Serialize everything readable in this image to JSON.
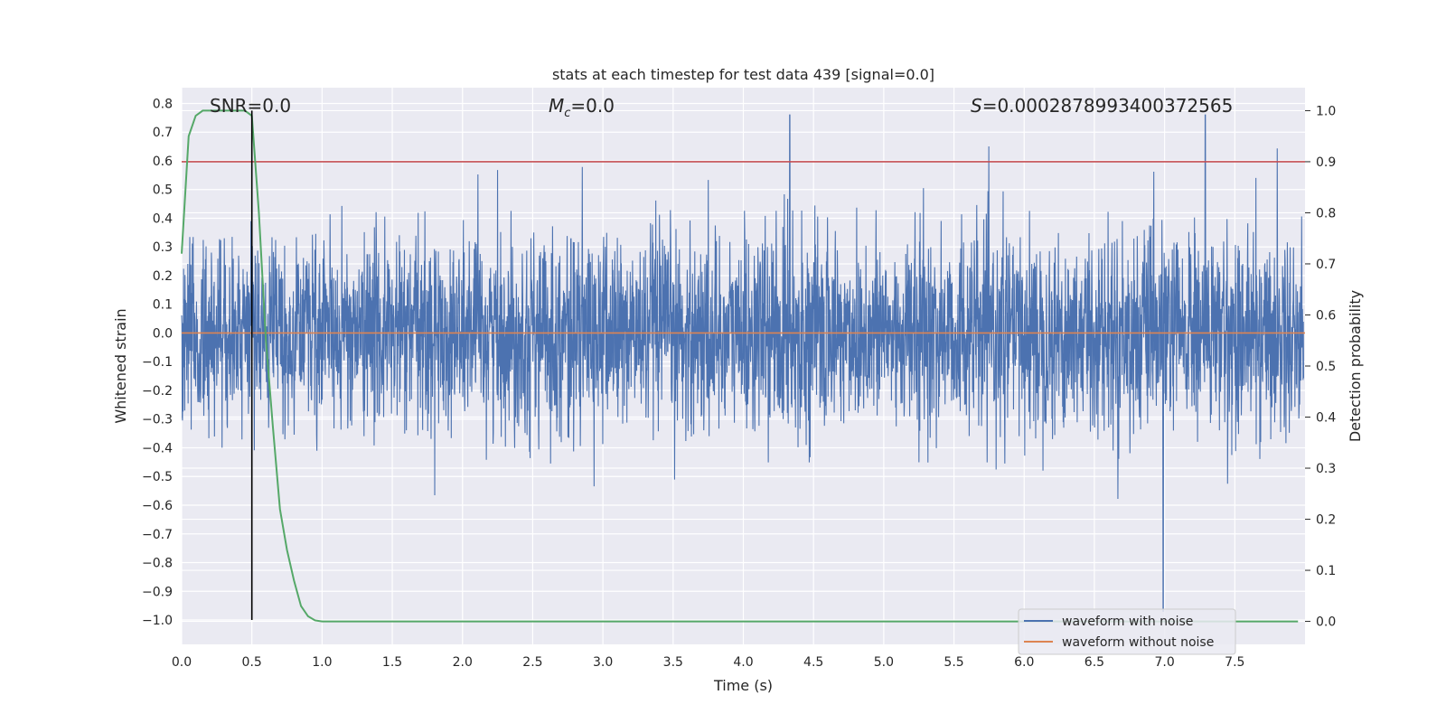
{
  "chart_data": {
    "type": "line",
    "title": "stats at each timestep for test data 439 [signal=0.0]",
    "xlabel": "Time (s)",
    "ylabel": "Whitened strain",
    "y2label": "Detection probability",
    "xlim": [
      0.0,
      8.0
    ],
    "ylim": [
      -1.085,
      0.855
    ],
    "y2lim": [
      -0.045,
      1.045
    ],
    "xticks": [
      "0.0",
      "0.5",
      "1.0",
      "1.5",
      "2.0",
      "2.5",
      "3.0",
      "3.5",
      "4.0",
      "4.5",
      "5.0",
      "5.5",
      "6.0",
      "6.5",
      "7.0",
      "7.5"
    ],
    "yticks": [
      "0.8",
      "0.7",
      "0.6",
      "0.5",
      "0.4",
      "0.3",
      "0.2",
      "0.1",
      "0.0",
      "-0.1",
      "-0.2",
      "-0.3",
      "-0.4",
      "-0.5",
      "-0.6",
      "-0.7",
      "-0.8",
      "-0.9",
      "-1.0"
    ],
    "y2ticks": [
      "1.0",
      "0.9",
      "0.8",
      "0.7",
      "0.6",
      "0.5",
      "0.4",
      "0.3",
      "0.2",
      "0.1",
      "0.0"
    ],
    "annotations": {
      "snr": "SNR=0.0",
      "mc_symbol": "M",
      "mc_sub": "c",
      "mc_value": "=0.0",
      "s_symbol": "S",
      "s_value": "=0.0002878993400372565"
    },
    "series": [
      {
        "name": "waveform with noise",
        "color": "#4c72b0",
        "axis": "left",
        "note": "noise envelope approx. ±0.25 to ±0.6, extremes near 0.76 and -0.97 at t≈7.0"
      },
      {
        "name": "waveform without noise",
        "color": "#dd8452",
        "axis": "left",
        "values": 0.0
      },
      {
        "name": "detection probability",
        "color": "#55a868",
        "axis": "right",
        "x": [
          0.0,
          0.05,
          0.1,
          0.15,
          0.2,
          0.25,
          0.3,
          0.35,
          0.4,
          0.45,
          0.5,
          0.55,
          0.6,
          0.65,
          0.7,
          0.75,
          0.8,
          0.85,
          0.9,
          0.95,
          1.0,
          1.05,
          2.0,
          3.0,
          4.0,
          5.0,
          6.0,
          7.0,
          7.95
        ],
        "values": [
          0.72,
          0.95,
          0.99,
          1.0,
          1.0,
          1.0,
          1.0,
          1.0,
          1.0,
          1.0,
          0.99,
          0.8,
          0.55,
          0.38,
          0.22,
          0.14,
          0.08,
          0.03,
          0.01,
          0.002,
          0.0,
          0.0,
          0.0,
          0.0,
          0.0,
          0.0,
          0.0,
          0.0,
          0.0
        ]
      }
    ],
    "threshold": {
      "value": 0.9,
      "axis": "right",
      "color": "#c44e52"
    },
    "marker_time": {
      "x": 0.5,
      "color": "#000000"
    },
    "legend": {
      "location": "lower-right",
      "entries": [
        "waveform with noise",
        "waveform without noise"
      ]
    }
  }
}
